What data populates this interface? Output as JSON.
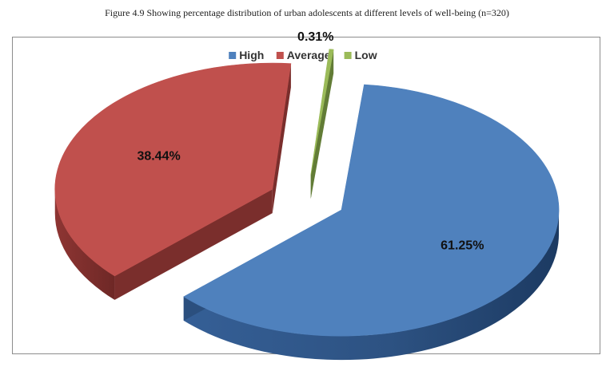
{
  "caption": "Figure 4.9 Showing percentage distribution of urban adolescents at different levels of well-being (n=320)",
  "chart_data": {
    "type": "pie",
    "style": "3d-exploded",
    "legend_position": "top",
    "categories": [
      "High",
      "Average",
      "Low"
    ],
    "values": [
      61.25,
      38.44,
      0.31
    ],
    "labels": [
      "61.25%",
      "38.44%",
      "0.31%"
    ],
    "colors": [
      "#4f81bd",
      "#c0504d",
      "#9bbb59"
    ]
  }
}
